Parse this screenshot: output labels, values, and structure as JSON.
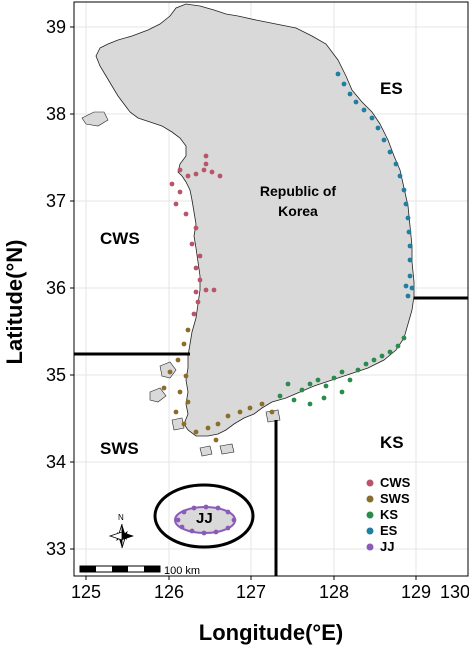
{
  "axes": {
    "x_label": "Longitude(°E)",
    "y_label": "Latitude(°N)",
    "x_ticks": [
      "125",
      "126",
      "127",
      "128",
      "129",
      "130"
    ],
    "y_ticks": [
      "33",
      "34",
      "35",
      "36",
      "37",
      "38",
      "39"
    ]
  },
  "country_label": {
    "line1": "Republic of",
    "line2": "Korea"
  },
  "regions": [
    {
      "code": "ES",
      "color": "#1f7ea1"
    },
    {
      "code": "CWS",
      "color": "#b8556a"
    },
    {
      "code": "SWS",
      "color": "#8a6d2b"
    },
    {
      "code": "KS",
      "color": "#2a8c4a"
    },
    {
      "code": "JJ",
      "color": "#8a5bb8"
    }
  ],
  "legend": [
    {
      "label": "CWS",
      "color": "#b8556a"
    },
    {
      "label": "SWS",
      "color": "#8a6d2b"
    },
    {
      "label": "KS",
      "color": "#2a8c4a"
    },
    {
      "label": "ES",
      "color": "#1f7ea1"
    },
    {
      "label": "JJ",
      "color": "#8a5bb8"
    }
  ],
  "north_arrow_label": "N",
  "scale_bar_label": "100 km",
  "colors": {
    "land": "#d9d9d9",
    "grid": "#e6e6e6",
    "boundary": "#000000"
  }
}
